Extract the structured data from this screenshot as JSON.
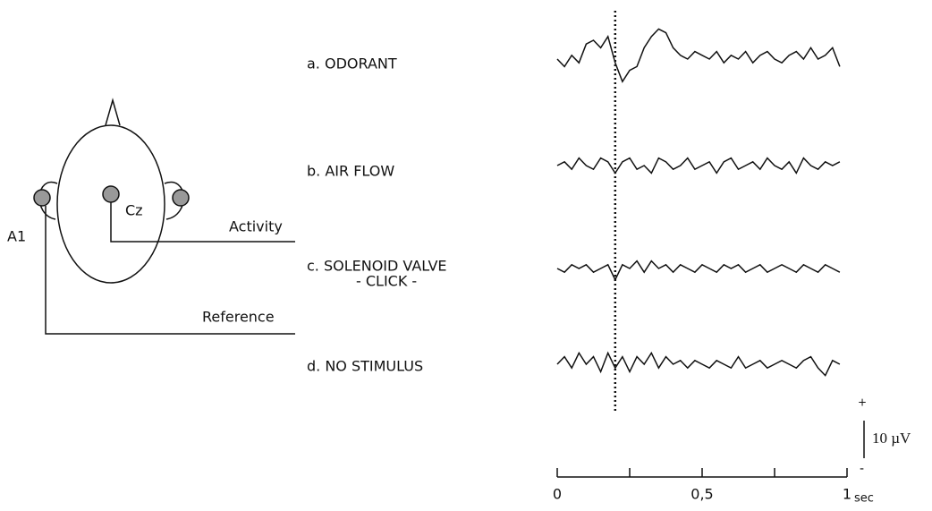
{
  "head": {
    "electrode_cz": "Cz",
    "electrode_a1": "A1",
    "activity": "Activity",
    "reference": "Reference"
  },
  "traces": {
    "x": [
      0,
      0.025,
      0.05,
      0.075,
      0.1,
      0.125,
      0.15,
      0.175,
      0.2,
      0.225,
      0.25,
      0.275,
      0.3,
      0.325,
      0.35,
      0.375,
      0.4,
      0.425,
      0.45,
      0.475,
      0.5,
      0.525,
      0.55,
      0.575,
      0.6,
      0.625,
      0.65,
      0.675,
      0.7,
      0.725,
      0.75,
      0.775,
      0.8,
      0.825,
      0.85,
      0.875,
      0.9,
      0.925,
      0.95,
      0.975
    ],
    "series": [
      {
        "name": "a. ODORANT",
        "values": [
          0,
          -2,
          1,
          -1,
          4,
          5,
          3,
          6,
          -1,
          -6,
          -3,
          -2,
          3,
          6,
          8,
          7,
          3,
          1,
          0,
          2,
          1,
          0,
          2,
          -1,
          1,
          0,
          2,
          -1,
          1,
          2,
          0,
          -1,
          1,
          2,
          0,
          3,
          0,
          1,
          3,
          -2
        ]
      },
      {
        "name": "b. AIR FLOW",
        "values": [
          0,
          1,
          -1,
          2,
          0,
          -1,
          2,
          1,
          -2,
          1,
          2,
          -1,
          0,
          -2,
          2,
          1,
          -1,
          0,
          2,
          -1,
          0,
          1,
          -2,
          1,
          2,
          -1,
          0,
          1,
          -1,
          2,
          0,
          -1,
          1,
          -2,
          2,
          0,
          -1,
          1,
          0,
          1
        ]
      },
      {
        "name": "c. SOLENOID VALVE",
        "subname": "- CLICK -",
        "values": [
          0,
          -1,
          1,
          0,
          1,
          -1,
          0,
          1,
          -3,
          1,
          0,
          2,
          -1,
          2,
          0,
          1,
          -1,
          1,
          0,
          -1,
          1,
          0,
          -1,
          1,
          0,
          1,
          -1,
          0,
          1,
          -1,
          0,
          1,
          0,
          -1,
          1,
          0,
          -1,
          1,
          0,
          -1
        ]
      },
      {
        "name": "d. NO STIMULUS",
        "values": [
          0,
          2,
          -1,
          3,
          0,
          2,
          -2,
          3,
          -1,
          2,
          -2,
          2,
          0,
          3,
          -1,
          2,
          0,
          1,
          -1,
          1,
          0,
          -1,
          1,
          0,
          -1,
          2,
          -1,
          0,
          1,
          -1,
          0,
          1,
          0,
          -1,
          1,
          2,
          -1,
          -3,
          1,
          0
        ]
      }
    ],
    "marker_x": 0.2,
    "xlim": [
      0,
      1
    ],
    "xticks": [
      0,
      {
        "value": 0.5,
        "label": "0,5"
      },
      1
    ],
    "minor_xticks": [
      0.25,
      0.75
    ],
    "x_unit": "sec",
    "scale_bar": {
      "value": 10,
      "label": "10 µV",
      "plus": "+",
      "minus": "-"
    }
  }
}
